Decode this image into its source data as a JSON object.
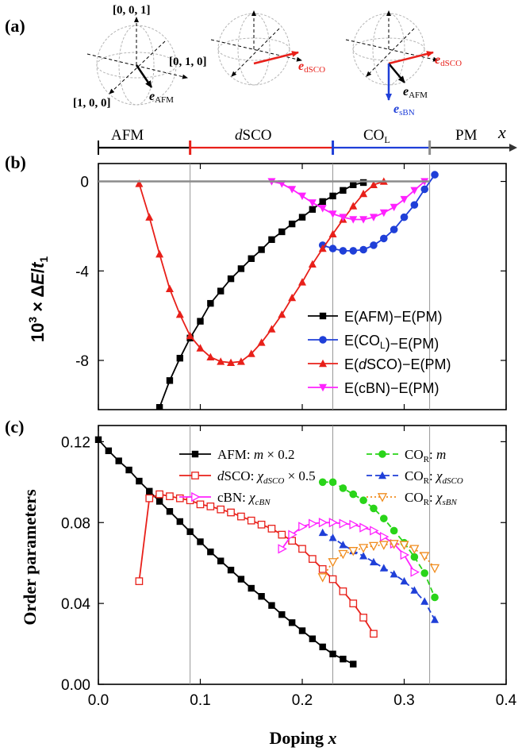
{
  "colors": {
    "afm": "#000000",
    "col": "#1f3fd8",
    "dsco": "#e8201a",
    "cbn": "#ff22ff",
    "cor_m": "#29d419",
    "cor_dsco": "#1f3fd8",
    "cor_sbn": "#f08c1e",
    "guide": "#8c8c8c",
    "pm_zero": "#8c8c8c"
  },
  "panel_a": {
    "label": "(a)",
    "vec_001": "[0, 0, 1]",
    "vec_010": "[0, 1, 0]",
    "vec_100": "[1, 0, 0]",
    "e_sym": "e",
    "sub_afm": "AFM",
    "sub_dsco": "dSCO",
    "sub_sbn": "sBN"
  },
  "phase_bar": {
    "afm": "AFM",
    "dsco": "dSCO",
    "col": "CO",
    "col_sub": "L",
    "pm": "PM",
    "x": "x",
    "boundaries": [
      0.09,
      0.23,
      0.325
    ]
  },
  "chart_data": [
    {
      "panel": "(b)",
      "type": "line",
      "ylabel_pre": "10",
      "ylabel_exp": "3",
      "ylabel_mid": " × Δ",
      "ylabel_E": "E",
      "ylabel_slash": "/",
      "ylabel_t": "t",
      "ylabel_t_sub": "1",
      "xlim": [
        0.0,
        0.4
      ],
      "ylim": [
        -10.2,
        0.8
      ],
      "yticks": [
        0,
        -4,
        -8
      ],
      "ytick_labels": [
        "0",
        "-4",
        "-8"
      ],
      "series": [
        {
          "name": "E(AFM)−E(PM)",
          "color_key": "afm",
          "marker": "square",
          "x": [
            0.06,
            0.07,
            0.08,
            0.09,
            0.1,
            0.11,
            0.12,
            0.13,
            0.14,
            0.15,
            0.16,
            0.17,
            0.18,
            0.19,
            0.2,
            0.21,
            0.22,
            0.23,
            0.24,
            0.25,
            0.26
          ],
          "y": [
            -10.1,
            -8.9,
            -7.9,
            -7.0,
            -6.25,
            -5.45,
            -4.9,
            -4.35,
            -3.9,
            -3.45,
            -3.05,
            -2.6,
            -2.25,
            -1.9,
            -1.6,
            -1.25,
            -0.9,
            -0.65,
            -0.4,
            -0.15,
            -0.05
          ]
        },
        {
          "name_pre": "E(CO",
          "name_sub": "L",
          "name_post": ")−E(PM)",
          "color_key": "col",
          "marker": "circle",
          "x": [
            0.22,
            0.23,
            0.24,
            0.25,
            0.26,
            0.27,
            0.28,
            0.29,
            0.3,
            0.31,
            0.32,
            0.33
          ],
          "y": [
            -2.85,
            -3.0,
            -3.1,
            -3.1,
            -3.05,
            -2.85,
            -2.55,
            -2.15,
            -1.6,
            -1.05,
            -0.35,
            0.3
          ]
        },
        {
          "name_pre": "E(",
          "name_ital": "d",
          "name_post": "SCO)−E(PM)",
          "color_key": "dsco",
          "marker": "triangle",
          "x": [
            0.04,
            0.05,
            0.06,
            0.07,
            0.08,
            0.09,
            0.1,
            0.11,
            0.12,
            0.13,
            0.14,
            0.15,
            0.16,
            0.17,
            0.18,
            0.19,
            0.2,
            0.21,
            0.22,
            0.23,
            0.24,
            0.25,
            0.26,
            0.27,
            0.28
          ],
          "y": [
            -0.1,
            -1.6,
            -3.25,
            -4.8,
            -5.95,
            -6.9,
            -7.45,
            -7.85,
            -8.05,
            -8.1,
            -8.05,
            -7.7,
            -7.2,
            -6.6,
            -5.95,
            -5.2,
            -4.5,
            -3.7,
            -3.0,
            -2.35,
            -1.7,
            -1.1,
            -0.55,
            -0.15,
            0.0
          ]
        },
        {
          "name": "E(cBN)−E(PM)",
          "color_key": "cbn",
          "marker": "triangle-down",
          "x": [
            0.17,
            0.18,
            0.19,
            0.2,
            0.21,
            0.22,
            0.23,
            0.24,
            0.25,
            0.26,
            0.27,
            0.28,
            0.29,
            0.3,
            0.31,
            0.32
          ],
          "y": [
            0.0,
            -0.1,
            -0.35,
            -0.65,
            -0.95,
            -1.2,
            -1.45,
            -1.6,
            -1.7,
            -1.7,
            -1.6,
            -1.4,
            -1.15,
            -0.8,
            -0.4,
            0.0
          ]
        },
        {
          "name": "",
          "color_key": "pm_zero",
          "marker": "none",
          "x": [
            0.0,
            0.325
          ],
          "y": [
            0.0,
            0.0
          ]
        }
      ]
    },
    {
      "panel": "(c)",
      "type": "line",
      "ylabel": "Order parameters",
      "xlabel": "Doping",
      "xlabel_var": "x",
      "xlim": [
        0.0,
        0.4
      ],
      "ylim": [
        0.0,
        0.128
      ],
      "xticks": [
        0.0,
        0.1,
        0.2,
        0.3,
        0.4
      ],
      "xtick_labels": [
        "0.0",
        "0.1",
        "0.2",
        "0.3",
        "0.4"
      ],
      "yticks": [
        0.0,
        0.04,
        0.08,
        0.12
      ],
      "ytick_labels": [
        "0.00",
        "0.04",
        "0.08",
        "0.12"
      ],
      "series": [
        {
          "legend_pre": "AFM: ",
          "legend_var": "m",
          "legend_post": " × 0.2",
          "color_key": "afm",
          "marker": "square",
          "dash": "solid",
          "x": [
            0.0,
            0.01,
            0.02,
            0.03,
            0.04,
            0.05,
            0.06,
            0.07,
            0.08,
            0.09,
            0.1,
            0.11,
            0.12,
            0.13,
            0.14,
            0.15,
            0.16,
            0.17,
            0.18,
            0.19,
            0.2,
            0.21,
            0.22,
            0.23,
            0.24,
            0.25
          ],
          "y": [
            0.121,
            0.1155,
            0.1105,
            0.106,
            0.1005,
            0.0955,
            0.0905,
            0.0855,
            0.0805,
            0.0755,
            0.0705,
            0.0655,
            0.061,
            0.0565,
            0.052,
            0.0475,
            0.0435,
            0.039,
            0.0345,
            0.0305,
            0.0265,
            0.0225,
            0.0185,
            0.015,
            0.0125,
            0.01
          ]
        },
        {
          "legend_ital": "d",
          "legend_pre": "SCO: ",
          "legend_var": "χ",
          "legend_var_sub": "dSCO",
          "legend_post": " × 0.5",
          "color_key": "dsco",
          "marker": "square-open",
          "dash": "solid",
          "x": [
            0.04,
            0.05,
            0.06,
            0.07,
            0.08,
            0.09,
            0.1,
            0.11,
            0.12,
            0.13,
            0.14,
            0.15,
            0.16,
            0.17,
            0.18,
            0.19,
            0.2,
            0.21,
            0.22,
            0.23,
            0.24,
            0.25,
            0.26,
            0.27
          ],
          "y": [
            0.051,
            0.092,
            0.094,
            0.093,
            0.092,
            0.091,
            0.089,
            0.088,
            0.0865,
            0.085,
            0.083,
            0.081,
            0.079,
            0.077,
            0.074,
            0.071,
            0.067,
            0.062,
            0.057,
            0.052,
            0.046,
            0.04,
            0.033,
            0.025
          ]
        },
        {
          "legend_pre": "cBN: ",
          "legend_var": "χ",
          "legend_var_sub": "cBN",
          "color_key": "cbn",
          "marker": "triangle-right-open",
          "dash": "solid",
          "x": [
            0.18,
            0.19,
            0.2,
            0.21,
            0.22,
            0.23,
            0.24,
            0.25,
            0.26,
            0.27,
            0.28,
            0.29,
            0.3,
            0.31
          ],
          "y": [
            0.067,
            0.074,
            0.078,
            0.0795,
            0.08,
            0.08,
            0.0795,
            0.079,
            0.0775,
            0.076,
            0.073,
            0.0695,
            0.064,
            0.0555
          ]
        },
        {
          "legend_pre": "CO",
          "legend_sub": "R",
          "legend_mid": ": ",
          "legend_var": "m",
          "color_key": "cor_m",
          "marker": "circle",
          "dash": "dash",
          "x": [
            0.22,
            0.23,
            0.24,
            0.25,
            0.26,
            0.27,
            0.28,
            0.29,
            0.3,
            0.31,
            0.32,
            0.33
          ],
          "y": [
            0.1,
            0.1,
            0.097,
            0.094,
            0.091,
            0.087,
            0.082,
            0.076,
            0.07,
            0.063,
            0.055,
            0.043
          ]
        },
        {
          "legend_pre": "CO",
          "legend_sub": "R",
          "legend_mid": ": ",
          "legend_var": "χ",
          "legend_var_sub": "dSCO",
          "color_key": "cor_dsco",
          "marker": "triangle",
          "dash": "dash",
          "x": [
            0.22,
            0.23,
            0.24,
            0.25,
            0.26,
            0.27,
            0.28,
            0.29,
            0.3,
            0.31,
            0.32,
            0.33
          ],
          "y": [
            0.075,
            0.0725,
            0.069,
            0.066,
            0.0635,
            0.0605,
            0.0575,
            0.0545,
            0.051,
            0.0465,
            0.041,
            0.032
          ]
        },
        {
          "legend_pre": "CO",
          "legend_sub": "R",
          "legend_mid": ": ",
          "legend_var": "χ",
          "legend_var_sub": "sBN",
          "color_key": "cor_sbn",
          "marker": "triangle-down-open",
          "dash": "dot",
          "x": [
            0.22,
            0.23,
            0.24,
            0.25,
            0.26,
            0.27,
            0.28,
            0.29,
            0.3,
            0.31,
            0.32,
            0.33
          ],
          "y": [
            0.053,
            0.0605,
            0.0645,
            0.066,
            0.0675,
            0.0685,
            0.069,
            0.0695,
            0.069,
            0.067,
            0.0635,
            0.0575
          ]
        }
      ]
    }
  ]
}
